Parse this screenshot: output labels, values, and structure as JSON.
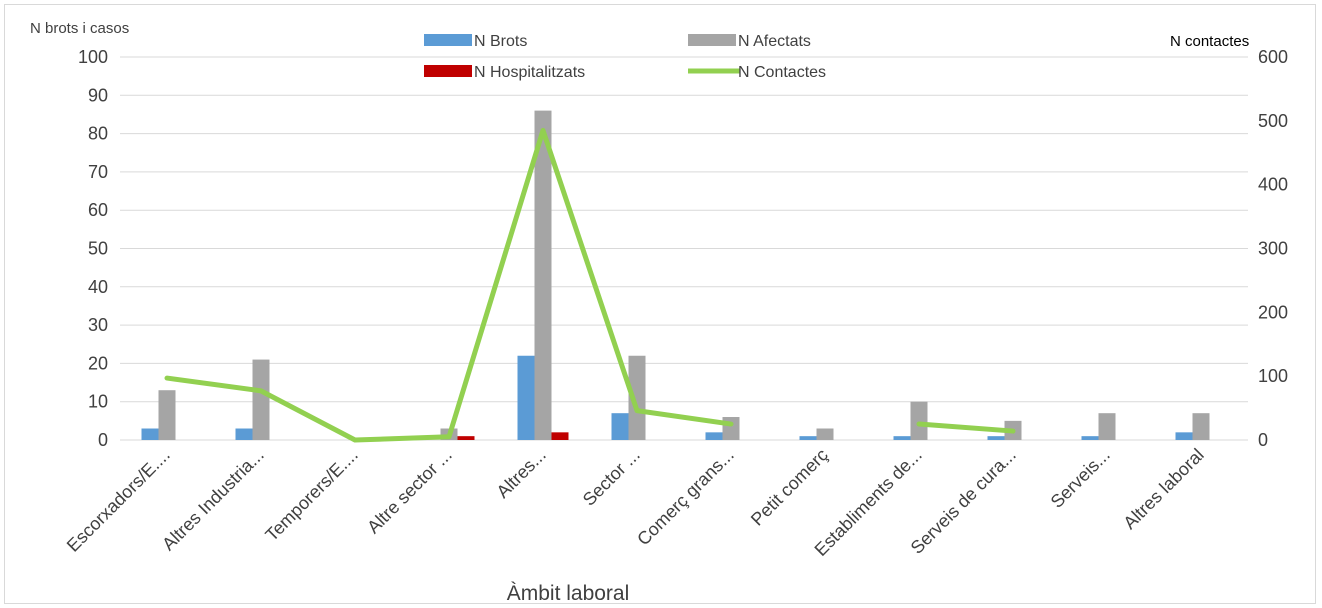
{
  "chart_data": {
    "type": "bar",
    "xlabel": "Àmbit laboral",
    "ylabel_left": "N brots i casos",
    "ylabel_right": "N contactes",
    "ylim_left": [
      0,
      100
    ],
    "yticks_left": [
      0,
      10,
      20,
      30,
      40,
      50,
      60,
      70,
      80,
      90,
      100
    ],
    "ylim_right": [
      0,
      600
    ],
    "yticks_right": [
      0,
      100,
      200,
      300,
      400,
      500,
      600
    ],
    "grid": true,
    "legend_position": "top",
    "categories": [
      "Escorxadors/E....",
      "Altres Industria...",
      "Temporers/E....",
      "Altre sector ...",
      "Altres...",
      "Sector ...",
      "Comerç grans...",
      "Petit comerç",
      "Establiments de...",
      "Serveis de cura...",
      "Serveis...",
      "Altres laboral"
    ],
    "series": [
      {
        "name": "N Brots",
        "type": "bar",
        "axis": "left",
        "color": "#5b9bd5",
        "values": [
          3,
          3,
          0,
          0,
          22,
          7,
          2,
          1,
          1,
          1,
          1,
          2
        ]
      },
      {
        "name": "N  Afectats",
        "type": "bar",
        "axis": "left",
        "color": "#a5a5a5",
        "values": [
          13,
          21,
          0,
          3,
          86,
          22,
          6,
          3,
          10,
          5,
          7,
          7
        ]
      },
      {
        "name": "N  Hospitalitzats",
        "type": "bar",
        "axis": "left",
        "color": "#c00000",
        "values": [
          0,
          0,
          0,
          1,
          2,
          0,
          0,
          0,
          0,
          0,
          0,
          0
        ]
      },
      {
        "name": "N Contactes",
        "type": "line",
        "axis": "right",
        "color": "#92d050",
        "values": [
          97,
          77,
          0,
          5,
          485,
          46,
          25,
          null,
          25,
          14,
          null,
          null
        ]
      }
    ]
  }
}
